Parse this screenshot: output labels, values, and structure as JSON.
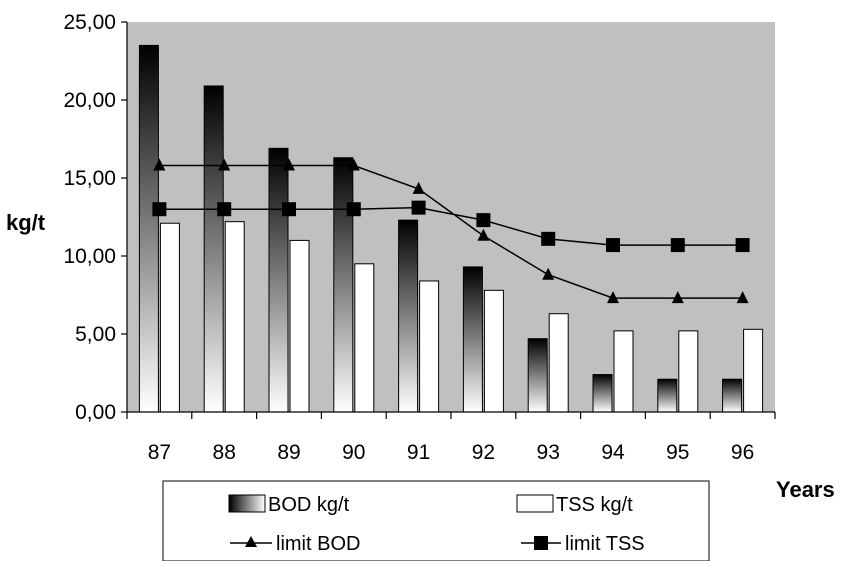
{
  "chart_data": {
    "type": "bar",
    "categories": [
      "87",
      "88",
      "89",
      "90",
      "91",
      "92",
      "93",
      "94",
      "95",
      "96"
    ],
    "series": [
      {
        "name": "BOD kg/t",
        "kind": "bar",
        "style": "gradient-black-to-white",
        "values": [
          23.5,
          20.9,
          16.9,
          16.3,
          12.3,
          9.3,
          4.7,
          2.4,
          2.1,
          2.1
        ]
      },
      {
        "name": "TSS kg/t",
        "kind": "bar",
        "style": "white-fill",
        "values": [
          12.1,
          12.2,
          11.0,
          9.5,
          8.4,
          7.8,
          6.3,
          5.2,
          5.2,
          5.3
        ]
      },
      {
        "name": "limit BOD",
        "kind": "line",
        "marker": "triangle",
        "values": [
          15.8,
          15.8,
          15.8,
          15.8,
          14.3,
          11.3,
          8.8,
          7.3,
          7.3,
          7.3
        ]
      },
      {
        "name": "limit TSS",
        "kind": "line",
        "marker": "square",
        "values": [
          13.0,
          13.0,
          13.0,
          13.0,
          13.1,
          12.3,
          11.1,
          10.7,
          10.7,
          10.7
        ]
      }
    ],
    "ylabel": "kg/t",
    "xlabel": "Years",
    "ylim": [
      0,
      25
    ],
    "yticks": [
      "0,00",
      "5,00",
      "10,00",
      "15,00",
      "20,00",
      "25,00"
    ],
    "grid": false,
    "legend_position": "bottom",
    "colors": {
      "plot_background": "#c0c0c0",
      "bar_dark": "#000000",
      "bar_light": "#ffffff",
      "line": "#000000"
    }
  }
}
